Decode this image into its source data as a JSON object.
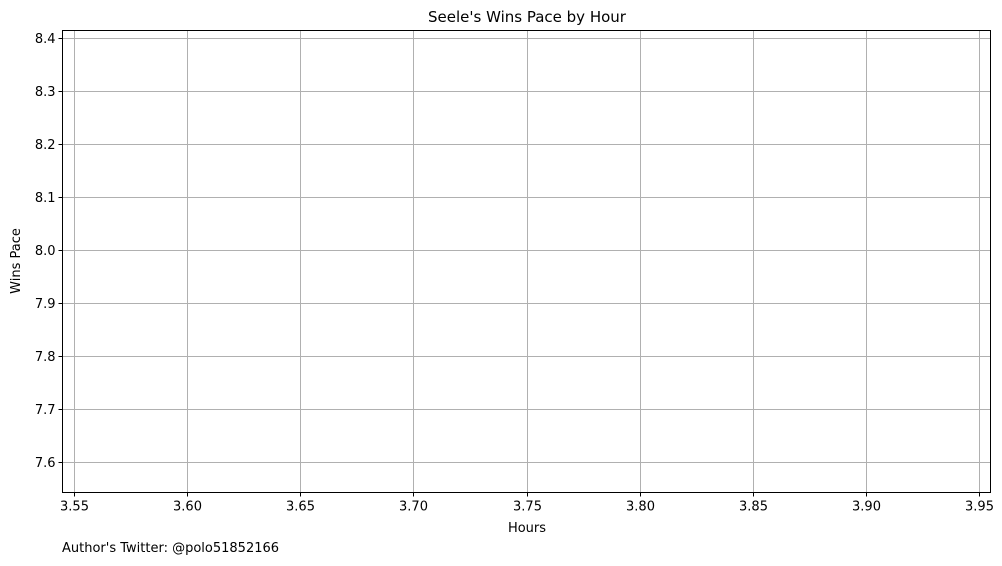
{
  "chart_data": {
    "type": "line",
    "title": "Seele's Wins Pace by Hour",
    "xlabel": "Hours",
    "ylabel": "Wins Pace",
    "xlim": [
      3.545,
      3.955
    ],
    "ylim": [
      7.543,
      8.415
    ],
    "xticks": [
      3.55,
      3.6,
      3.65,
      3.7,
      3.75,
      3.8,
      3.85,
      3.9,
      3.95
    ],
    "xtick_labels": [
      "3.55",
      "3.60",
      "3.65",
      "3.70",
      "3.75",
      "3.80",
      "3.85",
      "3.90",
      "3.95"
    ],
    "yticks": [
      7.6,
      7.7,
      7.8,
      7.9,
      8.0,
      8.1,
      8.2,
      8.3,
      8.4
    ],
    "ytick_labels": [
      "7.6",
      "7.7",
      "7.8",
      "7.9",
      "8.0",
      "8.1",
      "8.2",
      "8.3",
      "8.4"
    ],
    "grid": true,
    "series": [],
    "grid_color": "#b0b0b0"
  },
  "footer": {
    "credit": "Author's Twitter: @polo51852166"
  }
}
